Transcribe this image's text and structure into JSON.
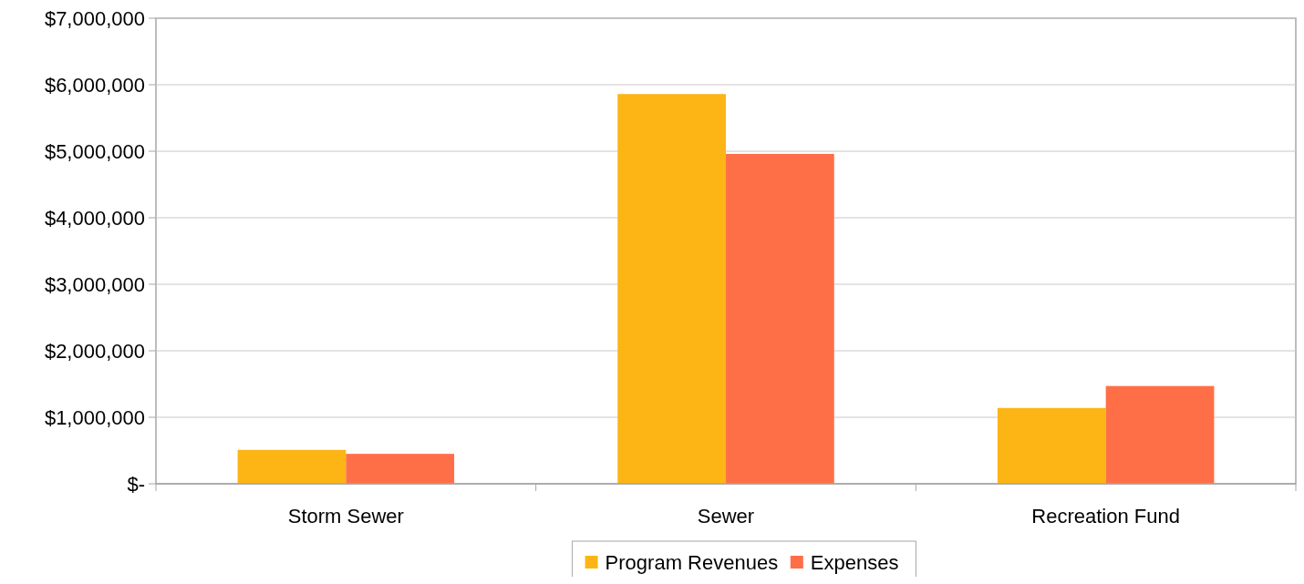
{
  "chart_data": {
    "type": "bar",
    "categories": [
      "Storm Sewer",
      "Sewer",
      "Recreation Fund"
    ],
    "series": [
      {
        "name": "Program Revenues",
        "color": "#fdb515",
        "values": [
          510000,
          5860000,
          1140000
        ]
      },
      {
        "name": "Expenses",
        "color": "#ff6f47",
        "values": [
          450000,
          4960000,
          1470000
        ]
      }
    ],
    "ylim": [
      0,
      7000000
    ],
    "yticks": [
      {
        "value": 0,
        "label": "$-"
      },
      {
        "value": 1000000,
        "label": "$1,000,000"
      },
      {
        "value": 2000000,
        "label": "$2,000,000"
      },
      {
        "value": 3000000,
        "label": "$3,000,000"
      },
      {
        "value": 4000000,
        "label": "$4,000,000"
      },
      {
        "value": 5000000,
        "label": "$5,000,000"
      },
      {
        "value": 6000000,
        "label": "$6,000,000"
      },
      {
        "value": 7000000,
        "label": "$7,000,000"
      }
    ],
    "grid": "y",
    "legend": "bottom"
  }
}
